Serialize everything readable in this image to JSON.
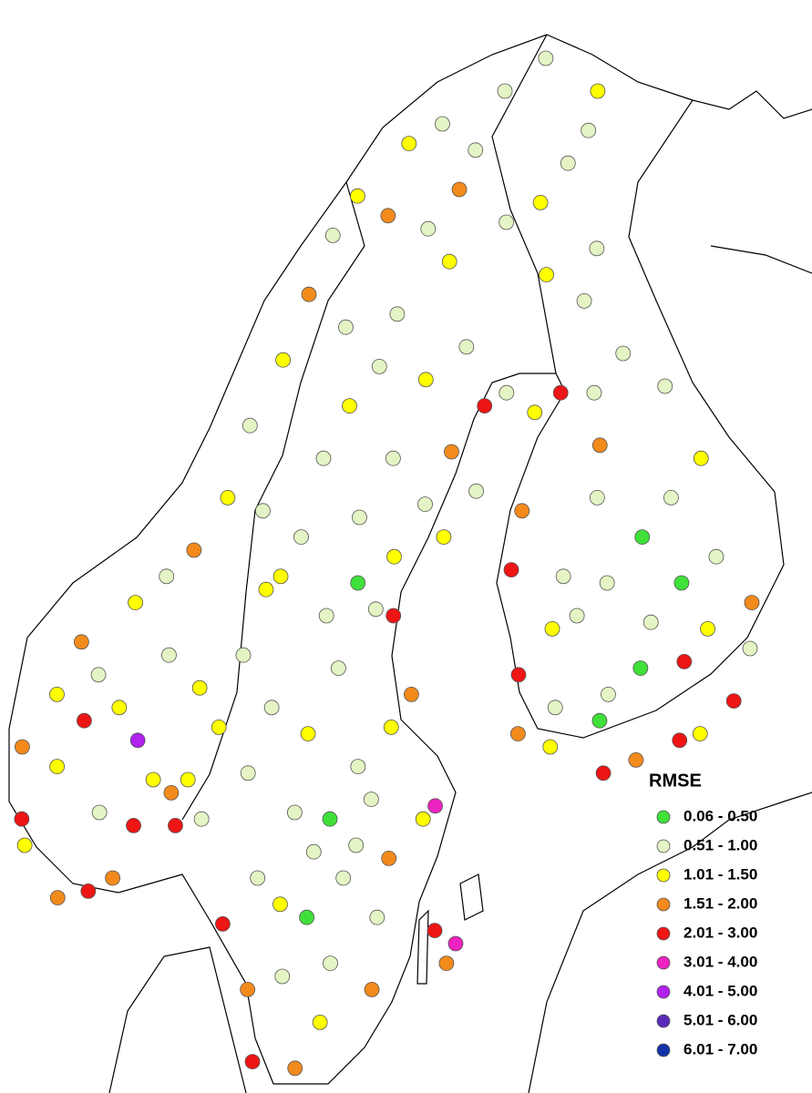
{
  "legend": {
    "title": "RMSE",
    "items": [
      {
        "label": "0.06 - 0.50",
        "color": "#3fe03a"
      },
      {
        "label": "0.51 - 1.00",
        "color": "#e4f4c4"
      },
      {
        "label": "1.01 - 1.50",
        "color": "#ffff00"
      },
      {
        "label": "1.51 - 2.00",
        "color": "#f28a1c"
      },
      {
        "label": "2.01 - 3.00",
        "color": "#ee1515"
      },
      {
        "label": "3.01 - 4.00",
        "color": "#ee22c0"
      },
      {
        "label": "4.01 - 5.00",
        "color": "#b022ee"
      },
      {
        "label": "5.01 - 6.00",
        "color": "#5a2ab8"
      },
      {
        "label": "6.01 - 7.00",
        "color": "#1334a8"
      }
    ]
  },
  "stations": [
    [
      5.3,
      60.4,
      3
    ],
    [
      5.6,
      59.3,
      4
    ],
    [
      5.8,
      58.9,
      2
    ],
    [
      6.2,
      61.2,
      2
    ],
    [
      6.8,
      62.0,
      3
    ],
    [
      7.0,
      58.1,
      3
    ],
    [
      7.9,
      58.2,
      4
    ],
    [
      8.6,
      58.4,
      3
    ],
    [
      6.5,
      60.1,
      2
    ],
    [
      7.2,
      60.8,
      4
    ],
    [
      8.0,
      59.4,
      1
    ],
    [
      9.1,
      59.2,
      4
    ],
    [
      9.6,
      59.9,
      2
    ],
    [
      7.5,
      61.5,
      1
    ],
    [
      8.3,
      61.0,
      2
    ],
    [
      9.0,
      60.5,
      6
    ],
    [
      10.2,
      59.7,
      3
    ],
    [
      10.7,
      59.9,
      2
    ],
    [
      10.4,
      59.2,
      4
    ],
    [
      11.2,
      59.3,
      1
    ],
    [
      8.5,
      62.6,
      2
    ],
    [
      9.5,
      63.0,
      1
    ],
    [
      10.4,
      63.4,
      3
    ],
    [
      11.5,
      64.2,
      2
    ],
    [
      12.2,
      65.3,
      1
    ],
    [
      13.4,
      66.3,
      2
    ],
    [
      14.4,
      67.3,
      3
    ],
    [
      15.4,
      68.2,
      1
    ],
    [
      16.5,
      68.8,
      2
    ],
    [
      18.9,
      69.6,
      2
    ],
    [
      20.5,
      69.9,
      1
    ],
    [
      23.6,
      70.4,
      1
    ],
    [
      25.8,
      70.9,
      1
    ],
    [
      28.0,
      70.4,
      2
    ],
    [
      27.2,
      69.8,
      1
    ],
    [
      26.0,
      69.3,
      1
    ],
    [
      24.5,
      68.7,
      2
    ],
    [
      22.9,
      68.4,
      1
    ],
    [
      21.0,
      68.9,
      3
    ],
    [
      19.5,
      68.3,
      1
    ],
    [
      20.3,
      67.8,
      2
    ],
    [
      18.0,
      67.0,
      1
    ],
    [
      17.2,
      66.2,
      1
    ],
    [
      16.0,
      65.6,
      2
    ],
    [
      15.0,
      64.8,
      1
    ],
    [
      14.2,
      63.6,
      1
    ],
    [
      13.0,
      62.8,
      2
    ],
    [
      12.3,
      61.8,
      1
    ],
    [
      13.3,
      61.0,
      1
    ],
    [
      14.5,
      60.6,
      2
    ],
    [
      15.5,
      61.6,
      1
    ],
    [
      16.8,
      62.5,
      1
    ],
    [
      17.5,
      63.3,
      2
    ],
    [
      18.7,
      64.1,
      1
    ],
    [
      19.8,
      64.9,
      3
    ],
    [
      21.2,
      65.6,
      4
    ],
    [
      22.1,
      65.8,
      1
    ],
    [
      20.7,
      66.5,
      1
    ],
    [
      19.0,
      66.0,
      2
    ],
    [
      17.6,
      64.8,
      1
    ],
    [
      16.3,
      63.9,
      1
    ],
    [
      15.1,
      62.4,
      1
    ],
    [
      17.4,
      62.4,
      4
    ],
    [
      17.9,
      61.2,
      3
    ],
    [
      16.1,
      60.1,
      1
    ],
    [
      17.2,
      60.7,
      2
    ],
    [
      18.5,
      59.5,
      5
    ],
    [
      18.1,
      59.3,
      2
    ],
    [
      17.0,
      58.7,
      3
    ],
    [
      16.5,
      59.6,
      1
    ],
    [
      15.2,
      59.3,
      0
    ],
    [
      14.1,
      59.4,
      1
    ],
    [
      13.0,
      58.4,
      1
    ],
    [
      12.0,
      57.7,
      4
    ],
    [
      12.8,
      56.7,
      3
    ],
    [
      13.0,
      55.6,
      4
    ],
    [
      14.2,
      55.5,
      3
    ],
    [
      14.9,
      56.2,
      2
    ],
    [
      16.4,
      56.7,
      3
    ],
    [
      16.6,
      57.8,
      1
    ],
    [
      15.6,
      58.4,
      1
    ],
    [
      14.5,
      57.8,
      0
    ],
    [
      13.8,
      56.9,
      1
    ],
    [
      15.2,
      57.1,
      1
    ],
    [
      18.3,
      57.6,
      4
    ],
    [
      18.9,
      57.4,
      5
    ],
    [
      18.6,
      57.1,
      3
    ],
    [
      21.6,
      63.1,
      4
    ],
    [
      22.2,
      64.0,
      3
    ],
    [
      23.1,
      65.5,
      2
    ],
    [
      24.2,
      65.8,
      4
    ],
    [
      25.4,
      65.0,
      3
    ],
    [
      25.0,
      64.2,
      1
    ],
    [
      23.4,
      63.0,
      1
    ],
    [
      22.8,
      62.2,
      2
    ],
    [
      21.5,
      61.5,
      4
    ],
    [
      21.3,
      60.6,
      3
    ],
    [
      22.3,
      60.4,
      2
    ],
    [
      23.9,
      60.0,
      4
    ],
    [
      25.0,
      60.2,
      3
    ],
    [
      26.5,
      60.5,
      4
    ],
    [
      27.2,
      60.6,
      2
    ],
    [
      28.5,
      61.1,
      4
    ],
    [
      29.4,
      61.9,
      1
    ],
    [
      29.8,
      62.6,
      3
    ],
    [
      28.9,
      63.3,
      1
    ],
    [
      27.7,
      64.2,
      1
    ],
    [
      29.1,
      64.8,
      2
    ],
    [
      28.3,
      65.9,
      1
    ],
    [
      26.9,
      66.4,
      1
    ],
    [
      25.7,
      67.2,
      1
    ],
    [
      26.6,
      68.0,
      1
    ],
    [
      24.3,
      67.6,
      2
    ],
    [
      27.5,
      62.9,
      0
    ],
    [
      26.2,
      62.3,
      1
    ],
    [
      25.6,
      61.6,
      0
    ],
    [
      24.4,
      61.2,
      1
    ],
    [
      23.7,
      62.4,
      1
    ],
    [
      24.9,
      62.9,
      1
    ],
    [
      26.4,
      63.6,
      0
    ],
    [
      27.1,
      61.7,
      4
    ],
    [
      24.0,
      60.8,
      0
    ],
    [
      25.5,
      65.8,
      1
    ],
    [
      22.6,
      61.0,
      1
    ],
    [
      28.1,
      62.2,
      2
    ],
    [
      11.6,
      60.7,
      2
    ],
    [
      12.6,
      60.0,
      1
    ],
    [
      14.7,
      58.8,
      1
    ],
    [
      13.7,
      58.0,
      2
    ],
    [
      16.0,
      58.9,
      1
    ],
    [
      13.5,
      63.0,
      2
    ],
    [
      12.8,
      64.0,
      1
    ],
    [
      15.9,
      66.8,
      1
    ],
    [
      17.8,
      68.5,
      3
    ],
    [
      21.9,
      69.5,
      1
    ],
    [
      16.2,
      62.9,
      0
    ],
    [
      19.3,
      63.6,
      2
    ],
    [
      20.6,
      64.3,
      1
    ],
    [
      9.8,
      61.8,
      1
    ],
    [
      10.9,
      61.3,
      2
    ]
  ]
}
